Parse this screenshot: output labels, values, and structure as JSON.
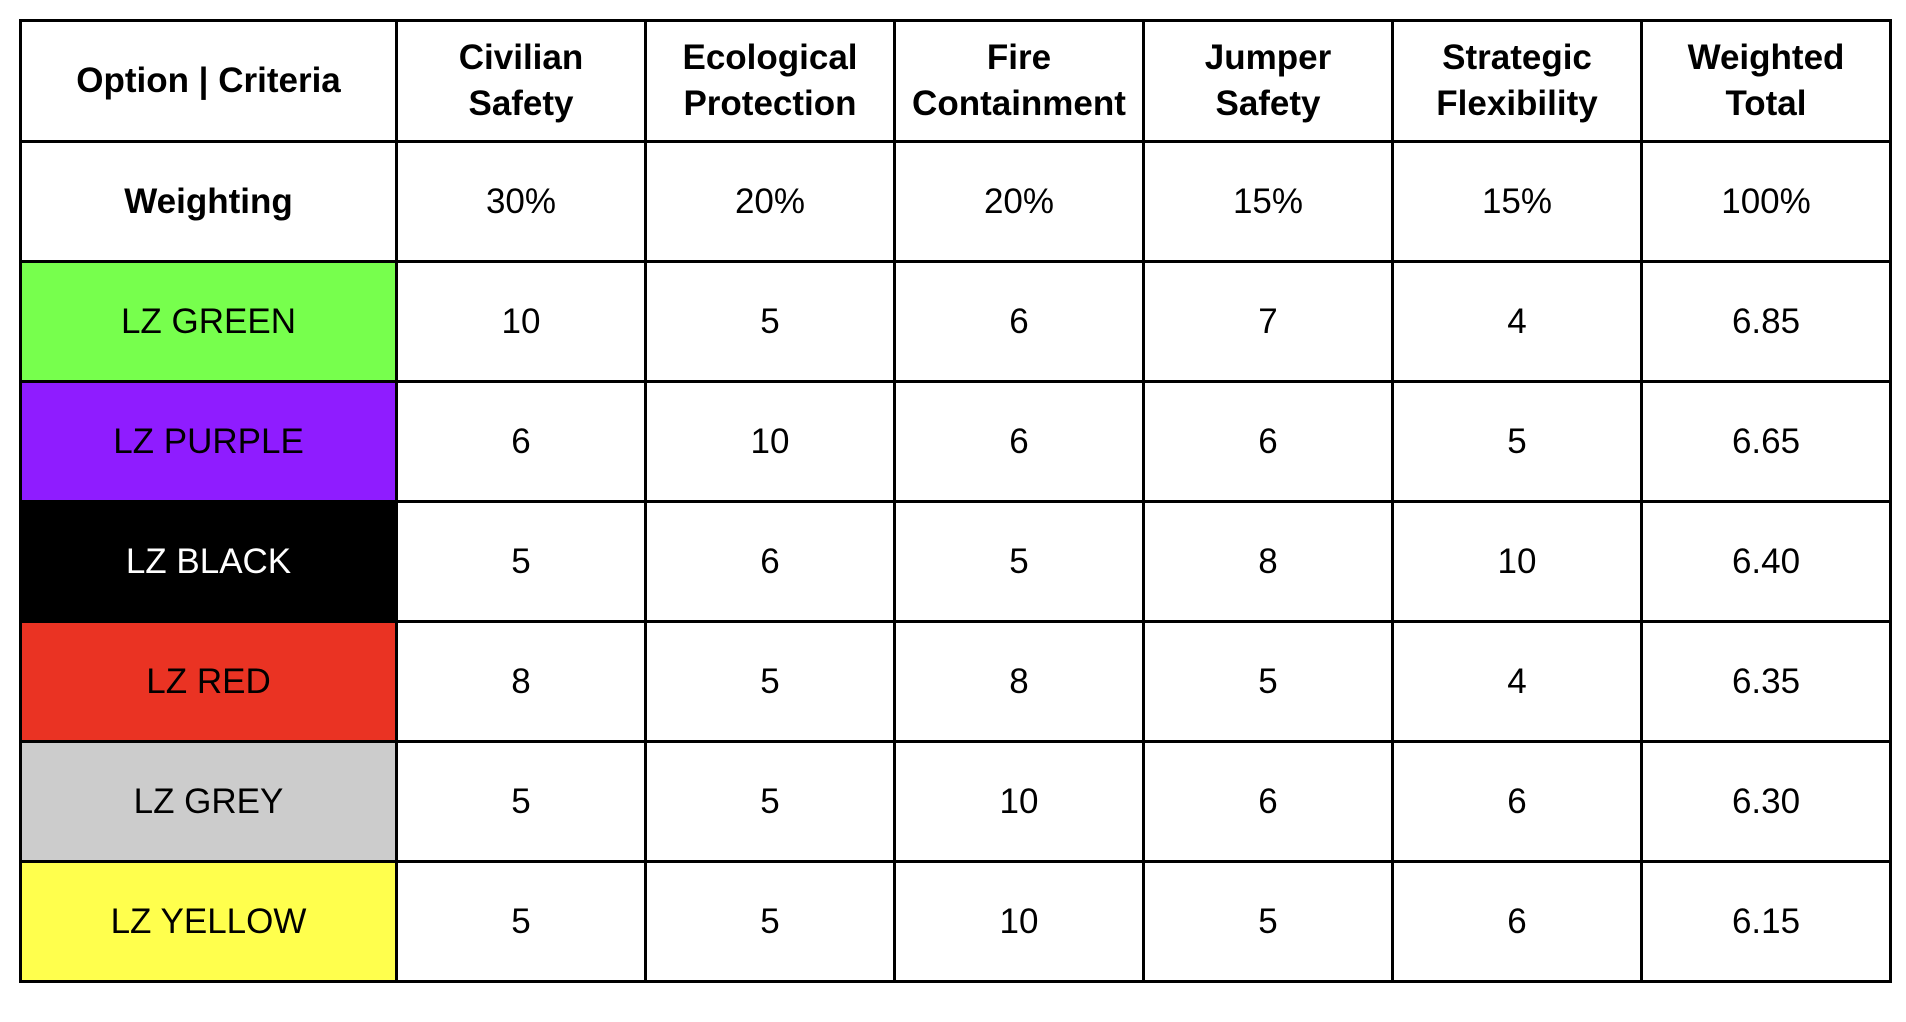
{
  "table": {
    "header": {
      "first": "Option | Criteria",
      "columns": [
        [
          "Civilian",
          "Safety"
        ],
        [
          "Ecological",
          "Protection"
        ],
        [
          "Fire",
          "Containment"
        ],
        [
          "Jumper",
          "Safety"
        ],
        [
          "Strategic",
          "Flexibility"
        ],
        [
          "Weighted",
          "Total"
        ]
      ]
    },
    "weighting": {
      "label": "Weighting",
      "values": [
        "30%",
        "20%",
        "20%",
        "15%",
        "15%",
        "100%"
      ]
    },
    "rows": [
      {
        "label": "LZ GREEN",
        "bg": "#77ff4d",
        "fg": "#000000",
        "values": [
          "10",
          "5",
          "6",
          "7",
          "4",
          "6.85"
        ]
      },
      {
        "label": "LZ PURPLE",
        "bg": "#8f1cff",
        "fg": "#000000",
        "values": [
          "6",
          "10",
          "6",
          "6",
          "5",
          "6.65"
        ]
      },
      {
        "label": "LZ BLACK",
        "bg": "#000000",
        "fg": "#ffffff",
        "values": [
          "5",
          "6",
          "5",
          "8",
          "10",
          "6.40"
        ]
      },
      {
        "label": "LZ RED",
        "bg": "#ea3323",
        "fg": "#000000",
        "values": [
          "8",
          "5",
          "8",
          "5",
          "4",
          "6.35"
        ]
      },
      {
        "label": "LZ GREY",
        "bg": "#cccccc",
        "fg": "#000000",
        "values": [
          "5",
          "5",
          "10",
          "6",
          "6",
          "6.30"
        ]
      },
      {
        "label": "LZ YELLOW",
        "bg": "#ffff4d",
        "fg": "#000000",
        "values": [
          "5",
          "5",
          "10",
          "5",
          "6",
          "6.15"
        ]
      }
    ]
  }
}
